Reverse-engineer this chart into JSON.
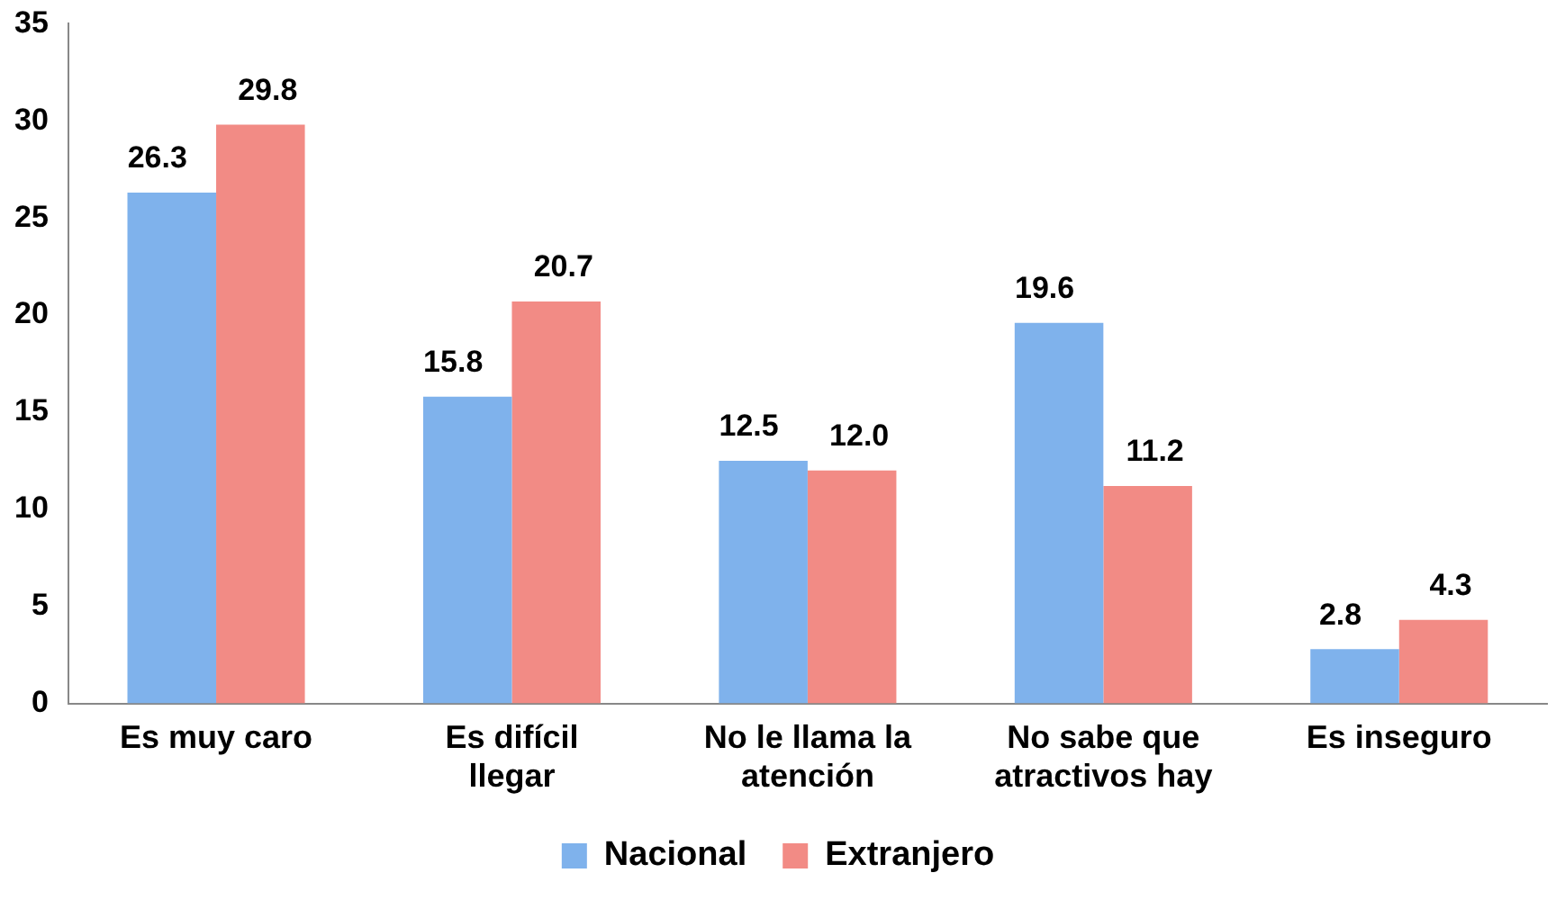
{
  "chart_data": {
    "type": "bar",
    "categories": [
      "Es muy caro",
      "Es difícil llegar",
      "No le llama la atención",
      "No sabe que atractivos hay",
      "Es inseguro"
    ],
    "series": [
      {
        "name": "Nacional",
        "color": "#7fb2ec",
        "values": [
          26.3,
          15.8,
          12.5,
          19.6,
          2.8
        ],
        "value_labels": [
          "26.3",
          "15.8",
          "12.5",
          "19.6",
          "2.8"
        ]
      },
      {
        "name": "Extranjero",
        "color": "#f28b85",
        "values": [
          29.8,
          20.7,
          12.0,
          11.2,
          4.3
        ],
        "value_labels": [
          "29.8",
          "20.7",
          "12.0",
          "11.2",
          "4.3"
        ]
      }
    ],
    "ylim": [
      0,
      35
    ],
    "yticks": [
      0,
      5,
      10,
      15,
      20,
      25,
      30,
      35
    ],
    "grid": false,
    "legend": "bottom"
  }
}
